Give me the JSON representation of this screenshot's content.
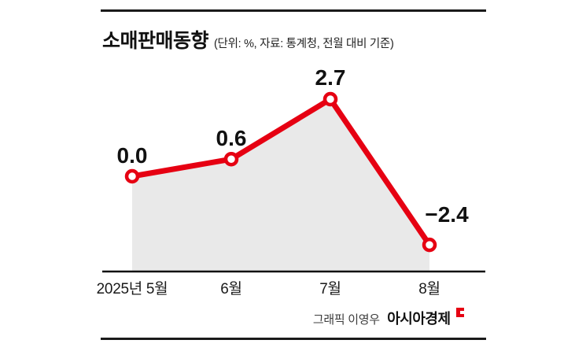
{
  "chart_data": {
    "type": "line",
    "title": "소매판매동향",
    "subtitle": "(단위: %, 자료: 통계청, 전월 대비 기준)",
    "unit": "%",
    "source": "통계청",
    "basis": "전월 대비 기준",
    "categories": [
      "2025년 5월",
      "6월",
      "7월",
      "8월"
    ],
    "values": [
      0.0,
      0.6,
      2.7,
      -2.4
    ],
    "value_labels": [
      "0.0",
      "0.6",
      "2.7",
      "−2.4"
    ],
    "ylim": [
      -3.3,
      4.0
    ],
    "grid": false,
    "legend": "none",
    "colors": {
      "line": "#e60012",
      "area": "#e9e9e9",
      "axis": "#111111",
      "marker_fill": "#ffffff"
    }
  },
  "footer": {
    "credit": "그래픽 이영우",
    "brand": "아시아경제"
  }
}
